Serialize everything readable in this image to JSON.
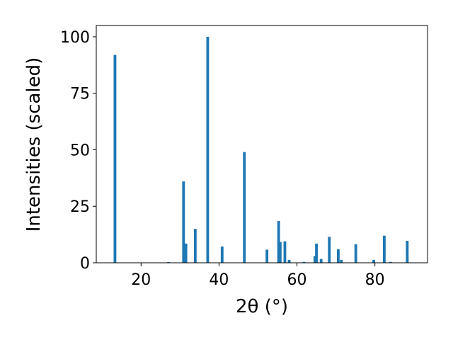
{
  "chart_data": {
    "type": "bar",
    "xlabel": "2θ (°)",
    "ylabel": "Intensities (scaled)",
    "title": "",
    "xlim": [
      8.5,
      93.5
    ],
    "ylim": [
      0,
      105
    ],
    "xticks": [
      20,
      40,
      60,
      80
    ],
    "yticks": [
      0,
      25,
      50,
      75,
      100
    ],
    "bar_color": "#1f77b4",
    "bar_width": 0.7,
    "grid": false,
    "legend": "none",
    "x": [
      13.3,
      27.0,
      30.9,
      31.5,
      33.9,
      37.1,
      40.8,
      46.5,
      52.3,
      55.3,
      55.7,
      56.9,
      58.0,
      61.8,
      64.6,
      65.0,
      66.2,
      68.3,
      70.6,
      71.4,
      75.1,
      79.7,
      82.4,
      84.0,
      88.3
    ],
    "values": [
      92,
      0.3,
      36,
      8.5,
      15,
      100,
      7.2,
      49,
      5.8,
      18.5,
      9.2,
      9.5,
      1.3,
      0.4,
      3,
      8.5,
      1.7,
      11.5,
      6,
      1.3,
      8.2,
      1.3,
      12,
      0.4,
      9.7
    ]
  }
}
